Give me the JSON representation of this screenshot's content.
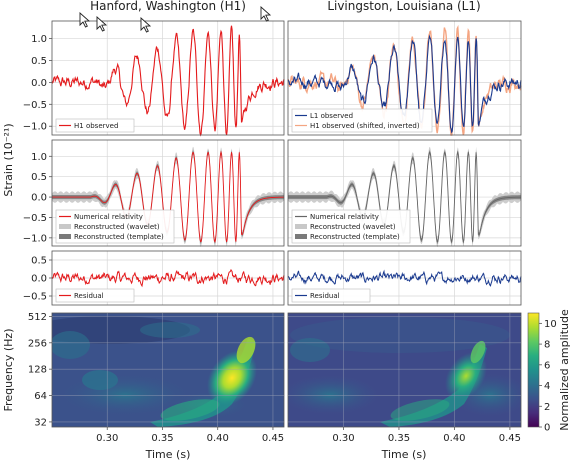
{
  "chart_data": {
    "type": "line",
    "titles": [
      "Hanford, Washington (H1)",
      "Livingston, Louisiana (L1)"
    ],
    "ylabel_strain": "Strain (10⁻²¹)",
    "ylabel_freq": "Frequency (Hz)",
    "xlabel": "Time (s)",
    "xlim": [
      0.25,
      0.46
    ],
    "xticks": [
      "0.30",
      "0.35",
      "0.40",
      "0.45"
    ],
    "xtick_values": [
      0.3,
      0.35,
      0.4,
      0.45
    ],
    "grid": true,
    "rows": [
      {
        "ylim": [
          -1.2,
          1.4
        ],
        "yticks": [
          "1.0",
          "0.5",
          "0.0",
          "−0.5",
          "−1.0"
        ],
        "ytick_values": [
          1.0,
          0.5,
          0.0,
          -0.5,
          -1.0
        ],
        "left_legend": [
          "H1 observed"
        ],
        "right_legend": [
          "L1 observed",
          "H1 observed (shifted, inverted)"
        ]
      },
      {
        "ylim": [
          -1.2,
          1.4
        ],
        "yticks": [
          "1.0",
          "0.5",
          "0.0",
          "−0.5",
          "−1.0"
        ],
        "ytick_values": [
          1.0,
          0.5,
          0.0,
          -0.5,
          -1.0
        ],
        "left_legend": [
          "Numerical relativity",
          "Reconstructed (wavelet)",
          "Reconstructed (template)"
        ],
        "right_legend": [
          "Numerical relativity",
          "Reconstructed (wavelet)",
          "Reconstructed (template)"
        ]
      },
      {
        "ylim": [
          -0.75,
          0.75
        ],
        "yticks": [
          "0.5",
          "0.0",
          "−0.5"
        ],
        "ytick_values": [
          0.5,
          0.0,
          -0.5
        ],
        "left_legend": [
          "Residual"
        ],
        "right_legend": [
          "Residual"
        ]
      }
    ],
    "spectrogram": {
      "yticks": [
        "512",
        "256",
        "128",
        "64",
        "32"
      ],
      "ytick_values": [
        512,
        256,
        128,
        64,
        32
      ],
      "ylim": [
        28,
        560
      ],
      "colorbar_label": "Normalized amplitude",
      "colorbar_ticks": [
        "0",
        "2",
        "4",
        "6",
        "8",
        "10"
      ],
      "colorbar_values": [
        0,
        2,
        4,
        6,
        8,
        10
      ],
      "colorbar_max": 11
    },
    "colors": {
      "h1": "#e41a1c",
      "l1": "#1a3a8f",
      "h1_shifted": "#f4a582",
      "nr": "#666666",
      "wavelet_band": "#c8c8c8",
      "template_band": "#7a7a7a"
    }
  }
}
